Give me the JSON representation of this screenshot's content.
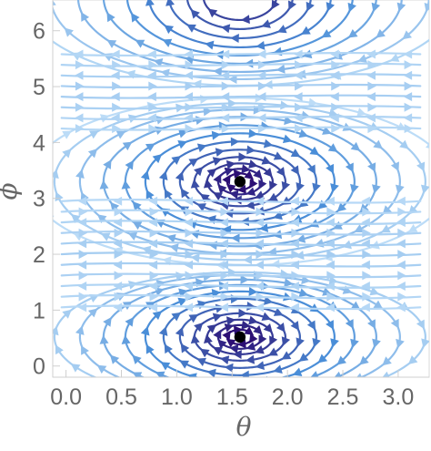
{
  "chart_data": {
    "type": "streamplot",
    "xlabel": "θ",
    "ylabel": "ϕ",
    "xlim": [
      -0.12,
      3.28
    ],
    "ylim": [
      -0.2,
      6.55
    ],
    "xticks": [
      0.0,
      0.5,
      1.0,
      1.5,
      2.0,
      2.5,
      3.0
    ],
    "xtick_labels": [
      "0.0",
      "0.5",
      "1.0",
      "1.5",
      "2.0",
      "2.5",
      "3.0"
    ],
    "yticks": [
      0,
      1,
      2,
      3,
      4,
      5,
      6
    ],
    "ytick_labels": [
      "0",
      "1",
      "2",
      "3",
      "4",
      "5",
      "6"
    ],
    "fixed_points": [
      {
        "x": 1.5708,
        "y": 3.3
      },
      {
        "x": 1.5708,
        "y": 0.52
      }
    ],
    "stream_centers": [
      {
        "x": 1.5708,
        "y": 0.52
      },
      {
        "x": 1.5708,
        "y": 3.3
      },
      {
        "x": 1.5708,
        "y": 6.6
      }
    ],
    "color_scale": {
      "low_speed": "#d8f0ff",
      "mid_speed": "#4a8ed8",
      "high_speed": "#2b0a70"
    },
    "grid": false,
    "frame": true
  }
}
